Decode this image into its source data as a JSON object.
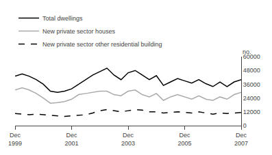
{
  "chart_data": {
    "type": "line",
    "ylabel": "no.",
    "categories": [
      "Dec\n1999",
      null,
      null,
      null,
      null,
      null,
      null,
      null,
      "Dec\n2001",
      null,
      null,
      null,
      null,
      null,
      null,
      null,
      "Dec\n2003",
      null,
      null,
      null,
      null,
      null,
      null,
      null,
      "Dec\n2005",
      null,
      null,
      null,
      null,
      null,
      null,
      null,
      "Dec\n2007"
    ],
    "ylim": [
      0,
      60000
    ],
    "yticks": [
      0,
      12000,
      24000,
      36000,
      48000,
      60000
    ],
    "grid": false,
    "legend": "top-left",
    "series": [
      {
        "name": "Total dwellings",
        "color": "#000000",
        "line_style": "solid",
        "values": [
          43000,
          45000,
          43000,
          40000,
          36000,
          30000,
          29000,
          30000,
          32000,
          36000,
          40000,
          44000,
          47000,
          50000,
          44000,
          40000,
          46000,
          48000,
          44000,
          40000,
          43500,
          35000,
          38000,
          41000,
          39000,
          37000,
          40000,
          36500,
          34000,
          38000,
          34000,
          38000,
          40000
        ]
      },
      {
        "name": "New private sector houses",
        "color": "#aaaaaa",
        "line_style": "solid",
        "values": [
          31000,
          33000,
          31000,
          28000,
          24000,
          19500,
          20000,
          21000,
          23000,
          27000,
          28000,
          29000,
          30000,
          30000,
          27000,
          26000,
          30000,
          31000,
          27000,
          25000,
          28000,
          22000,
          25000,
          27000,
          25000,
          23000,
          26000,
          23000,
          22000,
          25000,
          23000,
          27000,
          29000
        ]
      },
      {
        "name": "New private sector other residential building",
        "color": "#000000",
        "line_style": "dashed",
        "values": [
          10500,
          10000,
          9500,
          10000,
          9500,
          9000,
          8500,
          8000,
          8500,
          9000,
          9500,
          11000,
          13000,
          14000,
          13000,
          12000,
          13000,
          14000,
          13500,
          12000,
          12000,
          11000,
          11500,
          12000,
          11500,
          11000,
          12000,
          11000,
          10000,
          11000,
          10500,
          11000,
          11500
        ]
      }
    ]
  }
}
